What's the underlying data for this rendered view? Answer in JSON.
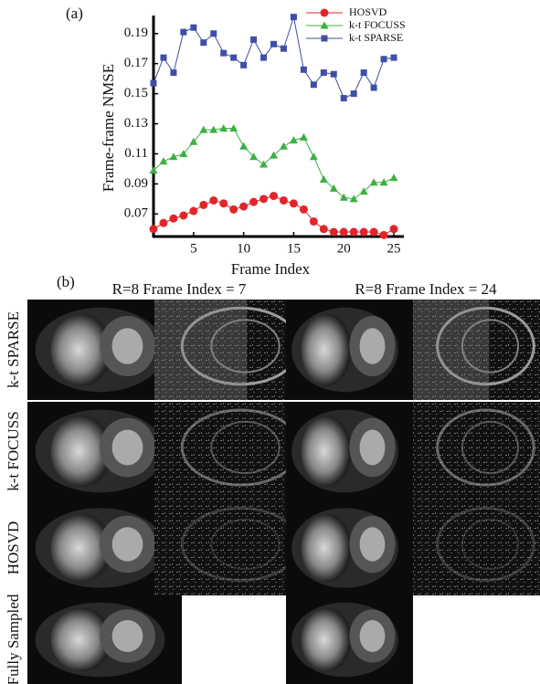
{
  "chart_data": {
    "type": "line",
    "label": "(a)",
    "xlabel": "Frame Index",
    "ylabel": "Frame-frame NMSE",
    "x": [
      1,
      2,
      3,
      4,
      5,
      6,
      7,
      8,
      9,
      10,
      11,
      12,
      13,
      14,
      15,
      16,
      17,
      18,
      19,
      20,
      21,
      22,
      23,
      24,
      25
    ],
    "xlim": [
      1,
      26
    ],
    "xticks": [
      5,
      10,
      15,
      20,
      25
    ],
    "ylim": [
      0.055,
      0.202
    ],
    "yticks": [
      0.07,
      0.09,
      0.11,
      0.13,
      0.15,
      0.17,
      0.19
    ],
    "series": [
      {
        "name": "HOSVD",
        "color": "#e0262b",
        "marker": "circle",
        "values": [
          0.06,
          0.064,
          0.067,
          0.069,
          0.072,
          0.076,
          0.079,
          0.077,
          0.073,
          0.075,
          0.078,
          0.08,
          0.082,
          0.079,
          0.077,
          0.073,
          0.065,
          0.06,
          0.058,
          0.058,
          0.058,
          0.058,
          0.058,
          0.056,
          0.06
        ]
      },
      {
        "name": "k-t FOCUSS",
        "color": "#3cb043",
        "marker": "triangle",
        "values": [
          0.099,
          0.105,
          0.108,
          0.11,
          0.118,
          0.126,
          0.126,
          0.127,
          0.127,
          0.115,
          0.108,
          0.103,
          0.109,
          0.115,
          0.119,
          0.121,
          0.108,
          0.093,
          0.087,
          0.081,
          0.08,
          0.085,
          0.091,
          0.091,
          0.094
        ]
      },
      {
        "name": "k-t SPARSE",
        "color": "#3f4fa8",
        "marker": "square",
        "values": [
          0.157,
          0.174,
          0.164,
          0.191,
          0.194,
          0.184,
          0.19,
          0.177,
          0.174,
          0.169,
          0.186,
          0.174,
          0.183,
          0.18,
          0.201,
          0.166,
          0.156,
          0.164,
          0.163,
          0.147,
          0.15,
          0.164,
          0.154,
          0.173,
          0.174
        ]
      }
    ]
  },
  "figure_b": {
    "label": "(b)",
    "column_titles": [
      "R=8 Frame Index = 7",
      "R=8 Frame Index = 24"
    ],
    "row_labels": [
      "k-t SPARSE",
      "k-t FOCUSS",
      "HOSVD",
      "Fully Sampled"
    ]
  }
}
